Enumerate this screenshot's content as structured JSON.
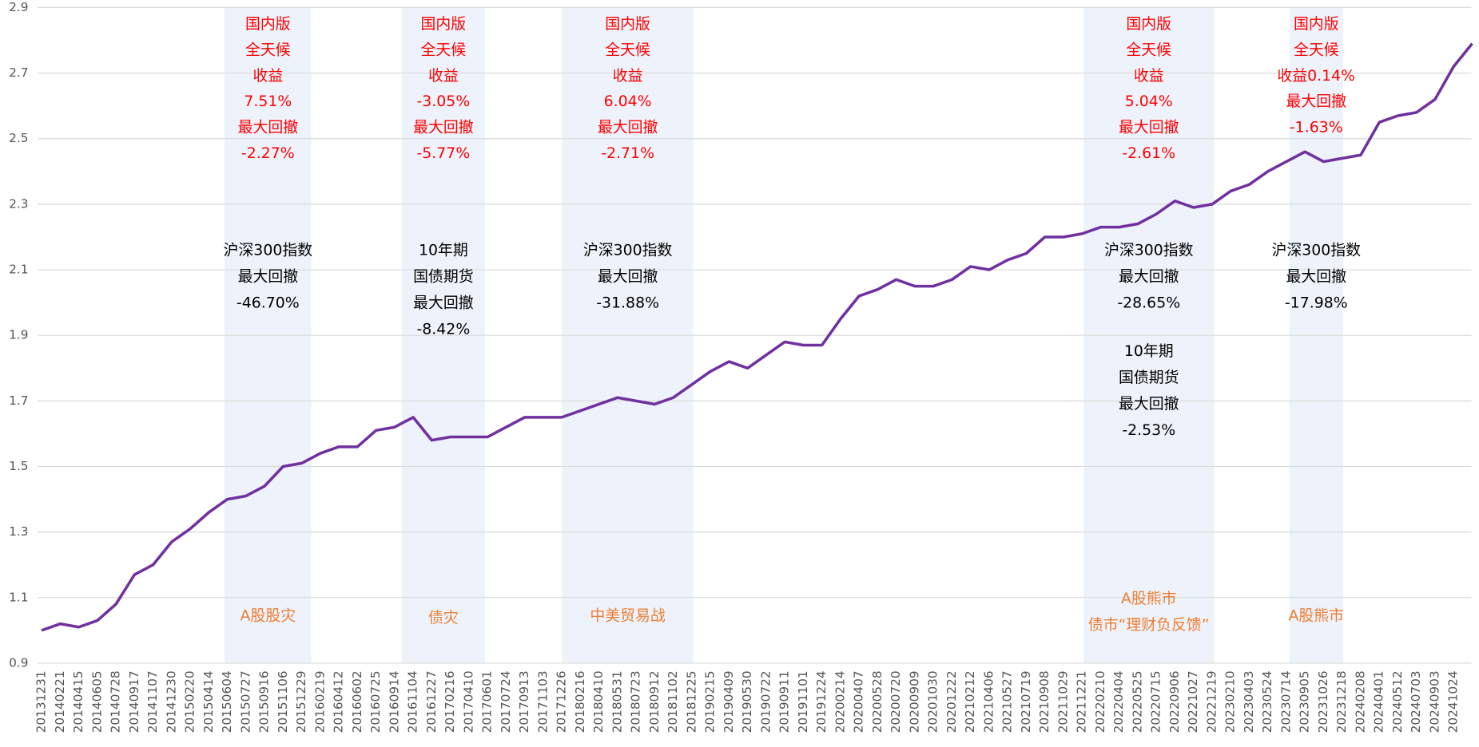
{
  "chart_data": {
    "type": "line",
    "categories": [
      "20131231",
      "20140221",
      "20140415",
      "20140605",
      "20140728",
      "20140917",
      "20141107",
      "20141230",
      "20150220",
      "20150414",
      "20150604",
      "20150727",
      "20150916",
      "20151106",
      "20151229",
      "20160219",
      "20160412",
      "20160602",
      "20160725",
      "20160914",
      "20161104",
      "20161227",
      "20170216",
      "20170410",
      "20170601",
      "20170724",
      "20170913",
      "20171103",
      "20171226",
      "20180216",
      "20180410",
      "20180531",
      "20180723",
      "20180912",
      "20181102",
      "20181225",
      "20190215",
      "20190409",
      "20190530",
      "20190722",
      "20190911",
      "20191101",
      "20191224",
      "20200214",
      "20200407",
      "20200528",
      "20200720",
      "20200909",
      "20201030",
      "20201222",
      "20210212",
      "20210406",
      "20210527",
      "20210719",
      "20210908",
      "20211029",
      "20211221",
      "20220210",
      "20220404",
      "20220525",
      "20220715",
      "20220906",
      "20221027",
      "20221219",
      "20230210",
      "20230403",
      "20230524",
      "20230714",
      "20230905",
      "20231026",
      "20231218",
      "20240208",
      "20240401",
      "20240512",
      "20240703",
      "20240903",
      "20241024",
      null
    ],
    "values": [
      1.0,
      1.02,
      1.01,
      1.03,
      1.08,
      1.17,
      1.2,
      1.27,
      1.31,
      1.36,
      1.4,
      1.41,
      1.44,
      1.5,
      1.51,
      1.54,
      1.56,
      1.56,
      1.61,
      1.62,
      1.65,
      1.58,
      1.59,
      1.59,
      1.59,
      1.62,
      1.65,
      1.65,
      1.65,
      1.67,
      1.69,
      1.71,
      1.7,
      1.69,
      1.71,
      1.75,
      1.79,
      1.82,
      1.8,
      1.84,
      1.88,
      1.87,
      1.87,
      1.95,
      2.02,
      2.04,
      2.07,
      2.05,
      2.05,
      2.07,
      2.11,
      2.1,
      2.13,
      2.15,
      2.2,
      2.2,
      2.21,
      2.23,
      2.23,
      2.24,
      2.27,
      2.31,
      2.29,
      2.3,
      2.34,
      2.36,
      2.4,
      2.43,
      2.46,
      2.43,
      2.44,
      2.45,
      2.55,
      2.57,
      2.58,
      2.62,
      2.72,
      2.79
    ],
    "color": "#7030a0",
    "ylim": [
      0.9,
      2.9
    ],
    "yticks": [
      0.9,
      1.1,
      1.3,
      1.5,
      1.7,
      1.9,
      2.1,
      2.3,
      2.5,
      2.7,
      2.9
    ],
    "grid": true,
    "annotations": [
      {
        "returns": [
          "国内版",
          "全天候",
          "收益",
          "7.51%",
          "最大回撤",
          "-2.27%"
        ],
        "drawdowns": [
          [
            "沪深300指数",
            "最大回撤",
            "-46.70%"
          ]
        ],
        "event": [
          "A股股灾"
        ]
      },
      {
        "returns": [
          "国内版",
          "全天候",
          "收益",
          "-3.05%",
          "最大回撤",
          "-5.77%"
        ],
        "drawdowns": [
          [
            "10年期",
            "国债期货",
            "最大回撤",
            "-8.42%"
          ]
        ],
        "event": [
          "债灾"
        ]
      },
      {
        "returns": [
          "国内版",
          "全天候",
          "收益",
          "6.04%",
          "最大回撤",
          "-2.71%"
        ],
        "drawdowns": [
          [
            "沪深300指数",
            "最大回撤",
            "-31.88%"
          ]
        ],
        "event": [
          "中美贸易战"
        ]
      },
      {
        "returns": [
          "国内版",
          "全天候",
          "收益",
          "5.04%",
          "最大回撤",
          "-2.61%"
        ],
        "drawdowns": [
          [
            "沪深300指数",
            "最大回撤",
            "-28.65%"
          ],
          [
            "10年期",
            "国债期货",
            "最大回撤",
            "-2.53%"
          ]
        ],
        "event": [
          "A股熊市",
          "债市“理财负反馈”"
        ]
      },
      {
        "returns": [
          "国内版",
          "全天候",
          "收益0.14%",
          "最大回撤",
          "-1.63%"
        ],
        "drawdowns": [
          [
            "沪深300指数",
            "最大回撤",
            "-17.98%"
          ]
        ],
        "event": [
          "A股熊市"
        ]
      }
    ]
  }
}
